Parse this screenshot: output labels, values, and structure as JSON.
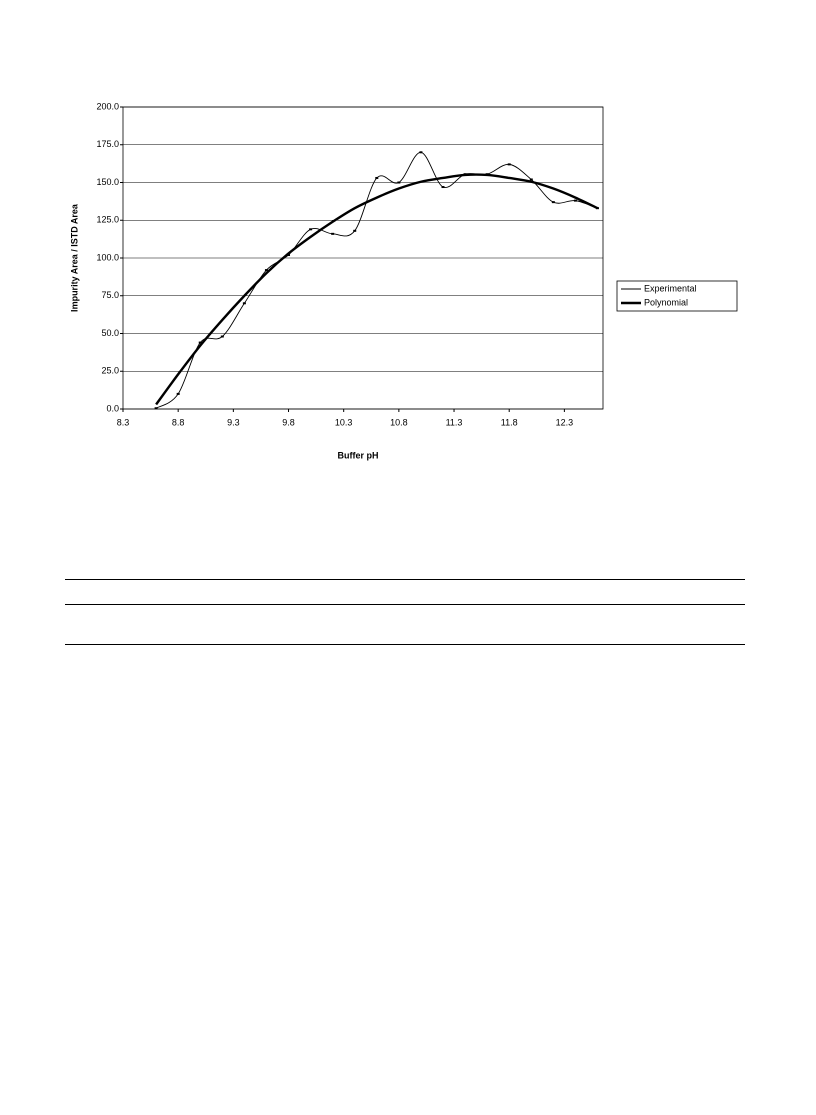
{
  "chart_data": {
    "type": "line",
    "x_label": "Buffer pH",
    "y_label": "Impurity Area / ISTD Area",
    "x": [
      8.6,
      8.8,
      9.0,
      9.2,
      9.4,
      9.6,
      9.8,
      10.0,
      10.2,
      10.4,
      10.6,
      10.8,
      11.0,
      11.2,
      11.4,
      11.6,
      11.8,
      12.0,
      12.2,
      12.4,
      12.6
    ],
    "series": [
      {
        "name": "Experimental",
        "color": "#000000",
        "values": [
          0.5,
          10,
          44,
          48,
          70,
          92,
          102,
          119,
          116,
          118,
          153,
          150,
          170,
          147,
          155.5,
          155.5,
          162,
          152,
          137,
          138,
          133
        ]
      },
      {
        "name": "Polynomial",
        "color": "#000000",
        "values": [
          3,
          23,
          42,
          59,
          75,
          90,
          103,
          114,
          124,
          133,
          140,
          146,
          150.5,
          153,
          155,
          155,
          153,
          150.5,
          146,
          140,
          133
        ]
      }
    ],
    "xlim": [
      8.3,
      12.65
    ],
    "xticks": [
      8.3,
      8.8,
      9.3,
      9.8,
      10.3,
      10.8,
      11.3,
      11.8,
      12.3
    ],
    "ylim": [
      0,
      200
    ],
    "yticks": [
      {
        "value": 0,
        "label": "0.0"
      },
      {
        "value": 25,
        "label": "25.0"
      },
      {
        "value": 50,
        "label": "50.0"
      },
      {
        "value": 75,
        "label": "75.0"
      },
      {
        "value": 100,
        "label": "100.0"
      },
      {
        "value": 125,
        "label": "125.0"
      },
      {
        "value": 150,
        "label": "150.0"
      },
      {
        "value": 175,
        "label": "175.0"
      },
      {
        "value": 200,
        "label": "200.0"
      }
    ],
    "grid": true,
    "legend": "right"
  }
}
